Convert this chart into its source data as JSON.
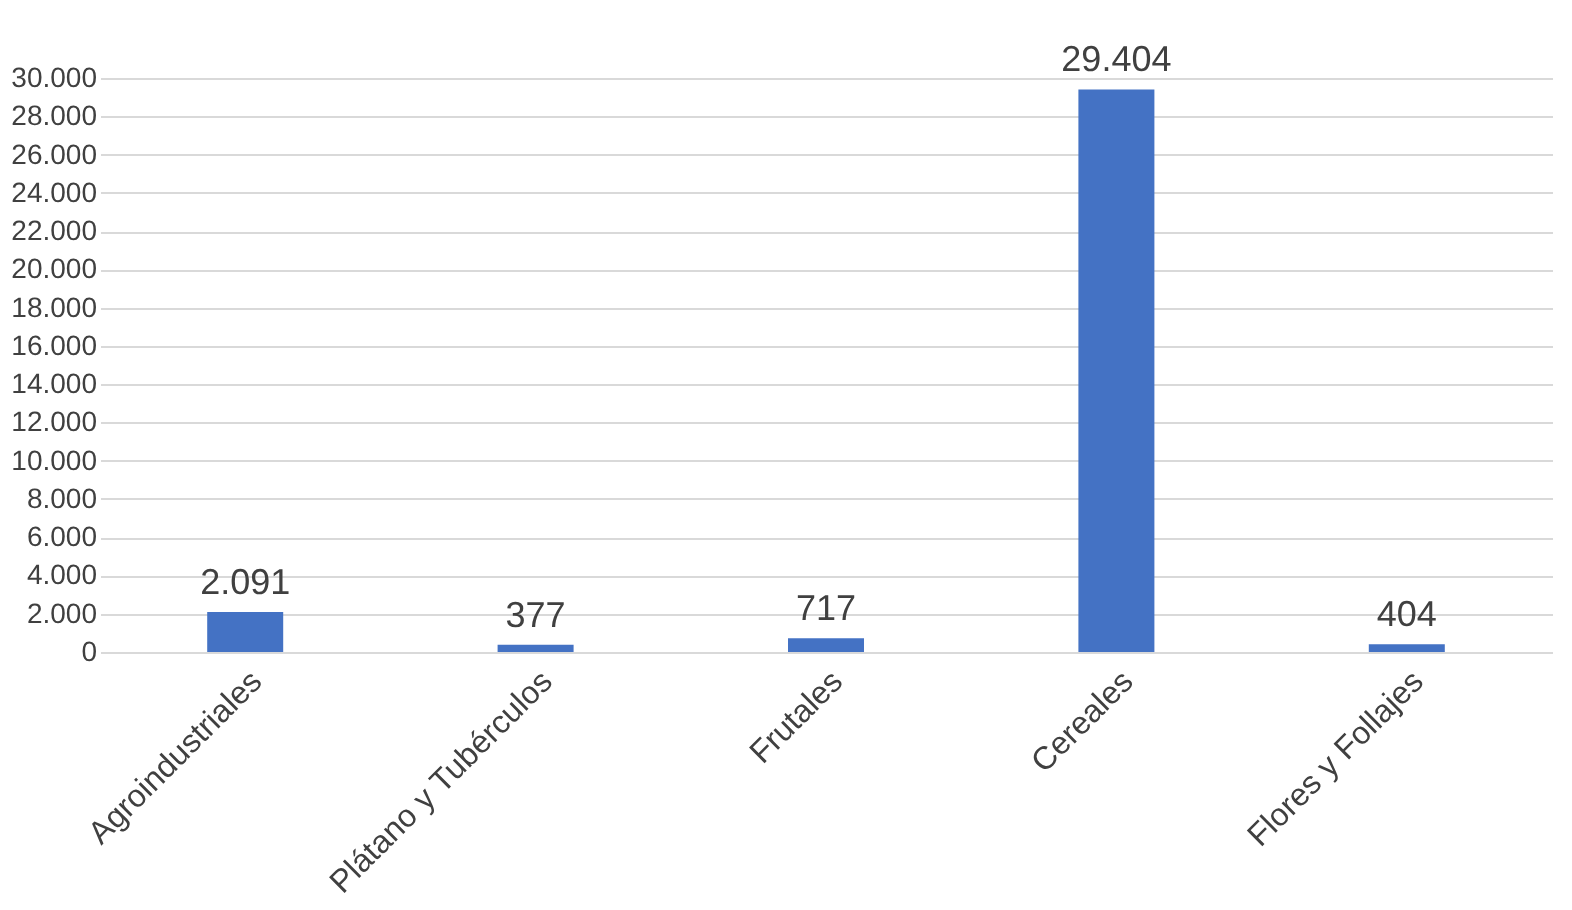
{
  "chart_data": {
    "type": "bar",
    "categories": [
      "Agroindustriales",
      "Plátano y Tubérculos",
      "Frutales",
      "Cereales",
      "Flores y Follajes"
    ],
    "values": [
      2091,
      377,
      717,
      29404,
      404
    ],
    "value_labels": [
      "2.091",
      "377",
      "717",
      "29.404",
      "404"
    ],
    "color": "#4472c4",
    "ylim": [
      0,
      30000
    ],
    "yticks": [
      0,
      {
        "value": 2000,
        "label": "2.000"
      },
      {
        "value": 4000,
        "label": "4.000"
      },
      {
        "value": 6000,
        "label": "6.000"
      },
      {
        "value": 8000,
        "label": "8.000"
      },
      {
        "value": 10000,
        "label": "10.000"
      },
      {
        "value": 12000,
        "label": "12.000"
      },
      {
        "value": 14000,
        "label": "14.000"
      },
      {
        "value": 16000,
        "label": "16.000"
      },
      {
        "value": 18000,
        "label": "18.000"
      },
      {
        "value": 20000,
        "label": "20.000"
      },
      {
        "value": 22000,
        "label": "22.000"
      },
      {
        "value": 24000,
        "label": "24.000"
      },
      {
        "value": 26000,
        "label": "26.000"
      },
      {
        "value": 28000,
        "label": "28.000"
      },
      {
        "value": 30000,
        "label": "30.000"
      }
    ],
    "grid": "y"
  }
}
